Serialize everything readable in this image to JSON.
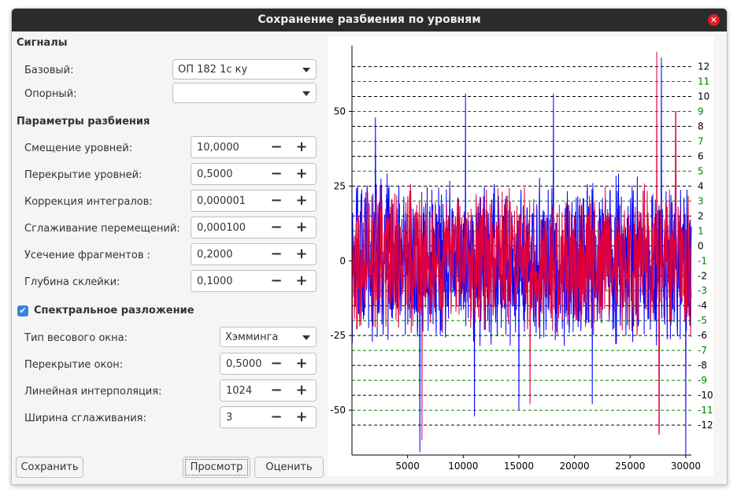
{
  "window": {
    "title": "Сохранение разбиения по уровням"
  },
  "signals": {
    "header": "Сигналы",
    "base_label": "Базовый:",
    "base_value": "ОП 182 1с ку",
    "ref_label": "Опорный:",
    "ref_value": ""
  },
  "params": {
    "header": "Параметры разбиения",
    "items": [
      {
        "label": "Смещение уровней:",
        "value": "10,0000"
      },
      {
        "label": "Перекрытие уровней:",
        "value": "0,5000"
      },
      {
        "label": "Коррекция интегралов:",
        "value": "0,000001"
      },
      {
        "label": "Сглаживание перемещений:",
        "value": "0,000100"
      },
      {
        "label": "Усечение фрагментов :",
        "value": "0,2000"
      },
      {
        "label": "Глубина склейки:",
        "value": "0,1000"
      }
    ]
  },
  "spectral": {
    "header": "Спектральное разложение",
    "checked": true,
    "window_type_label": "Тип весового окна:",
    "window_type_value": "Хэмминга",
    "items": [
      {
        "label": "Перекрытие окон:",
        "value": "0,5000"
      },
      {
        "label": "Линейная интерполяция:",
        "value": "1024"
      },
      {
        "label": "Ширина сглаживания:",
        "value": "3"
      }
    ]
  },
  "spin_glyphs": {
    "minus": "−",
    "plus": "+"
  },
  "buttons": {
    "save": "Сохранить",
    "preview": "Просмотр",
    "evaluate": "Оценить"
  },
  "icons": {
    "close": "close-icon",
    "dropdown": "chevron-down-icon",
    "checkbox": "check-icon"
  },
  "colors": {
    "series_blue": "#0000ff",
    "series_red": "#e0003c",
    "level_black": "#000000",
    "level_green": "#008000"
  },
  "chart_data": {
    "type": "line",
    "xlim": [
      0,
      30500
    ],
    "ylim": [
      -65,
      72
    ],
    "x_ticks": [
      5000,
      10000,
      15000,
      20000,
      25000,
      30000
    ],
    "y_ticks": [
      -50,
      -25,
      0,
      25,
      50
    ],
    "series": [
      {
        "color": "#0000ff",
        "amplitude": 25,
        "peaks": [
          [
            10200,
            56
          ],
          [
            18100,
            56
          ],
          [
            2100,
            48
          ],
          [
            27800,
            68
          ],
          [
            6100,
            -64
          ],
          [
            30000,
            -65
          ],
          [
            11000,
            -52
          ],
          [
            15000,
            -50
          ],
          [
            21600,
            -48
          ]
        ]
      },
      {
        "color": "#e0003c",
        "amplitude": 22,
        "peaks": [
          [
            27400,
            70
          ],
          [
            29100,
            50
          ],
          [
            6300,
            -60
          ],
          [
            27600,
            -58
          ],
          [
            16000,
            -48
          ]
        ]
      }
    ],
    "levels": [
      {
        "label": "12",
        "y": 65,
        "color": "#000000"
      },
      {
        "label": "11",
        "y": 60,
        "color": "#008000"
      },
      {
        "label": "10",
        "y": 55,
        "color": "#000000"
      },
      {
        "label": "9",
        "y": 50,
        "color": "#008000"
      },
      {
        "label": "8",
        "y": 45,
        "color": "#000000"
      },
      {
        "label": "7",
        "y": 40,
        "color": "#008000"
      },
      {
        "label": "6",
        "y": 35,
        "color": "#000000"
      },
      {
        "label": "5",
        "y": 30,
        "color": "#008000"
      },
      {
        "label": "4",
        "y": 25,
        "color": "#000000"
      },
      {
        "label": "3",
        "y": 20,
        "color": "#008000"
      },
      {
        "label": "2",
        "y": 15,
        "color": "#000000"
      },
      {
        "label": "1",
        "y": 10,
        "color": "#008000"
      },
      {
        "label": "0",
        "y": 5,
        "color": "#000000"
      },
      {
        "label": "-1",
        "y": 0,
        "color": "#008000"
      },
      {
        "label": "-2",
        "y": -5,
        "color": "#000000"
      },
      {
        "label": "-3",
        "y": -10,
        "color": "#008000"
      },
      {
        "label": "-4",
        "y": -15,
        "color": "#000000"
      },
      {
        "label": "-5",
        "y": -20,
        "color": "#008000"
      },
      {
        "label": "-6",
        "y": -25,
        "color": "#000000"
      },
      {
        "label": "-7",
        "y": -30,
        "color": "#008000"
      },
      {
        "label": "-8",
        "y": -35,
        "color": "#000000"
      },
      {
        "label": "-9",
        "y": -40,
        "color": "#008000"
      },
      {
        "label": "-10",
        "y": -45,
        "color": "#000000"
      },
      {
        "label": "-11",
        "y": -50,
        "color": "#008000"
      },
      {
        "label": "-12",
        "y": -55,
        "color": "#000000"
      }
    ]
  }
}
